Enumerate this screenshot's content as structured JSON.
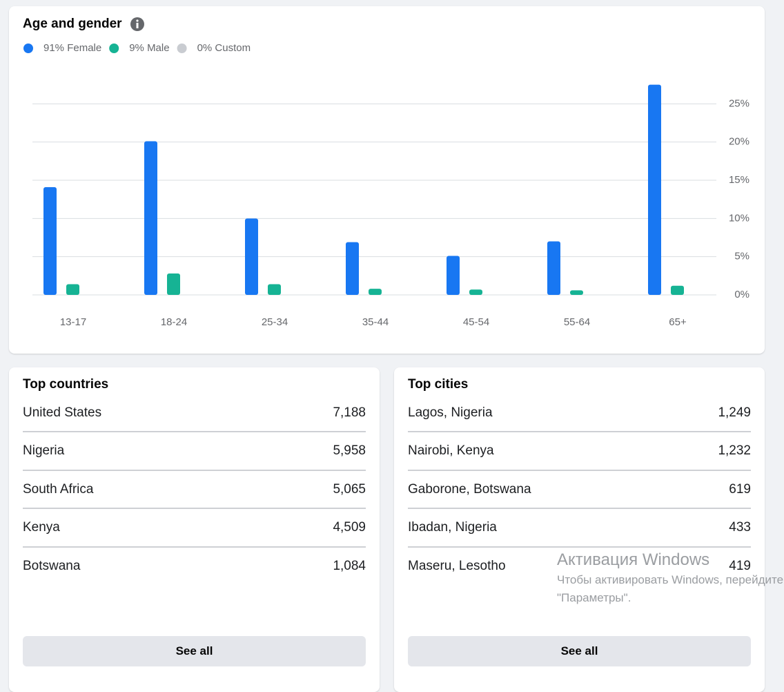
{
  "chart_data": {
    "type": "bar",
    "title": "Age and gender",
    "categories": [
      "13-17",
      "18-24",
      "25-34",
      "35-44",
      "45-54",
      "55-64",
      "65+"
    ],
    "series": [
      {
        "name": "91% Female",
        "color": "#1877f2",
        "values": [
          14.1,
          20.1,
          10.0,
          6.9,
          5.1,
          7.0,
          27.5
        ]
      },
      {
        "name": "9% Male",
        "color": "#16b394",
        "values": [
          1.4,
          2.8,
          1.4,
          0.8,
          0.7,
          0.6,
          1.2
        ]
      },
      {
        "name": "0% Custom",
        "color": "#c9ccd1",
        "values": [
          0,
          0,
          0,
          0,
          0,
          0,
          0
        ]
      }
    ],
    "ylim": [
      0,
      30
    ],
    "yticks": [
      {
        "value": 0,
        "label": "0%"
      },
      {
        "value": 5,
        "label": "5%"
      },
      {
        "value": 10,
        "label": "10%"
      },
      {
        "value": 15,
        "label": "15%"
      },
      {
        "value": 20,
        "label": "20%"
      },
      {
        "value": 25,
        "label": "25%"
      }
    ],
    "grid": true
  },
  "top_countries": {
    "title": "Top countries",
    "rows": [
      [
        "United States",
        "7,188"
      ],
      [
        "Nigeria",
        "5,958"
      ],
      [
        "South Africa",
        "5,065"
      ],
      [
        "Kenya",
        "4,509"
      ],
      [
        "Botswana",
        "1,084"
      ]
    ],
    "button": "See all"
  },
  "top_cities": {
    "title": "Top cities",
    "rows": [
      [
        "Lagos, Nigeria",
        "1,249"
      ],
      [
        "Nairobi, Kenya",
        "1,232"
      ],
      [
        "Gaborone, Botswana",
        "619"
      ],
      [
        "Ibadan, Nigeria",
        "433"
      ],
      [
        "Maseru, Lesotho",
        "419"
      ]
    ],
    "button": "See all"
  },
  "watermark": {
    "title": "Активация Windows",
    "line1": "Чтобы активировать Windows, перейдите",
    "line2": "\"Параметры\"."
  }
}
